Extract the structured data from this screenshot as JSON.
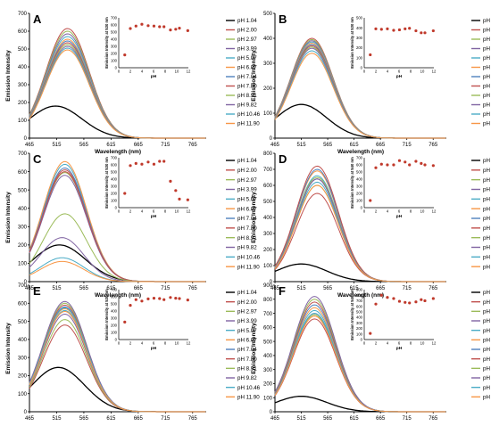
{
  "figure": {
    "legend_entries": [
      "pH 1.04",
      "pH 2.00",
      "pH 2.97",
      "pH 3.99",
      "pH 5.07",
      "pH 6.07",
      "pH 7.04",
      "pH 7.80",
      "pH 8.91",
      "pH 9.82",
      "pH 10.46",
      "pH 11.90"
    ],
    "series_colors": [
      "#000000",
      "#c0504d",
      "#9bbb59",
      "#8064a2",
      "#4bacc6",
      "#f79646",
      "#4f81bd",
      "#c0504d",
      "#9bbb59",
      "#8064a2",
      "#4bacc6",
      "#f79646"
    ],
    "inset_point_color": "#c0392b",
    "xticks": [
      465,
      515,
      565,
      615,
      665,
      715,
      765
    ]
  },
  "chart_data": [
    {
      "panel": "A",
      "type": "line",
      "xlabel": "Wavelength (nm)",
      "ylabel": "Emission Intensity",
      "xlim": [
        465,
        790
      ],
      "ylim": [
        0,
        700
      ],
      "yticks": [
        0,
        100,
        200,
        300,
        400,
        500,
        600,
        700
      ],
      "peaks": [
        180,
        615,
        600,
        585,
        570,
        555,
        545,
        535,
        525,
        515,
        505,
        495
      ],
      "peak_x": [
        513,
        535,
        535,
        535,
        535,
        535,
        535,
        535,
        535,
        535,
        535,
        535
      ],
      "inset": {
        "ylabel": "Emission Intensity at 530 nm",
        "xlabel": "pH",
        "xlim": [
          0,
          12
        ],
        "ylim": [
          0,
          700
        ],
        "yticks": [
          0,
          100,
          200,
          300,
          400,
          500,
          600,
          700
        ],
        "xticks": [
          0,
          2,
          4,
          6,
          8,
          10,
          12
        ],
        "x": [
          1.04,
          2.0,
          2.97,
          3.99,
          5.07,
          6.07,
          7.04,
          7.8,
          8.91,
          9.82,
          10.46,
          11.9
        ],
        "y": [
          180,
          550,
          585,
          610,
          590,
          585,
          575,
          575,
          530,
          540,
          555,
          520
        ]
      }
    },
    {
      "panel": "B",
      "type": "line",
      "xlabel": "Wavelength (nm)",
      "ylabel": "Emission Intensity",
      "xlim": [
        465,
        790
      ],
      "ylim": [
        0,
        500
      ],
      "yticks": [
        0,
        100,
        200,
        300,
        400,
        500
      ],
      "peaks": [
        135,
        400,
        395,
        390,
        385,
        380,
        375,
        370,
        365,
        360,
        350,
        340
      ],
      "peak_x": [
        515,
        535,
        535,
        535,
        535,
        535,
        535,
        535,
        535,
        535,
        535,
        535
      ],
      "inset": {
        "ylabel": "Emission Intensity at 530 nm",
        "xlabel": "pH",
        "xlim": [
          0,
          12
        ],
        "ylim": [
          0,
          500
        ],
        "yticks": [
          0,
          100,
          200,
          300,
          400,
          500
        ],
        "xticks": [
          0,
          2,
          4,
          6,
          8,
          10,
          12
        ],
        "x": [
          1.04,
          2.0,
          2.97,
          3.99,
          5.07,
          6.07,
          7.04,
          7.8,
          8.91,
          9.82,
          10.46,
          11.9
        ],
        "y": [
          130,
          390,
          385,
          390,
          375,
          380,
          390,
          395,
          370,
          350,
          350,
          370
        ]
      }
    },
    {
      "panel": "C",
      "type": "line",
      "xlabel": "Wavelength (nm)",
      "ylabel": "Emission Intensity",
      "xlim": [
        465,
        790
      ],
      "ylim": [
        0,
        700
      ],
      "yticks": [
        0,
        100,
        200,
        300,
        400,
        500,
        600,
        700
      ],
      "peaks": [
        200,
        610,
        595,
        580,
        640,
        655,
        620,
        600,
        370,
        240,
        130,
        110
      ],
      "peak_x": [
        520,
        530,
        530,
        530,
        530,
        530,
        530,
        530,
        530,
        525,
        525,
        525
      ],
      "inset": {
        "ylabel": "Emission Intensity at 530 nm",
        "xlabel": "pH",
        "xlim": [
          0,
          12
        ],
        "ylim": [
          0,
          700
        ],
        "yticks": [
          0,
          100,
          200,
          300,
          400,
          500,
          600,
          700
        ],
        "xticks": [
          0,
          2,
          4,
          6,
          8,
          10,
          12
        ],
        "x": [
          1.04,
          2.0,
          2.97,
          3.99,
          5.07,
          6.07,
          7.04,
          7.8,
          8.91,
          9.82,
          10.46,
          11.9
        ],
        "y": [
          200,
          590,
          620,
          610,
          640,
          610,
          650,
          650,
          370,
          240,
          120,
          110
        ]
      }
    },
    {
      "panel": "D",
      "type": "line",
      "xlabel": "Wavelength (nm)",
      "ylabel": "Emission Intensity",
      "xlim": [
        465,
        790
      ],
      "ylim": [
        0,
        800
      ],
      "yticks": [
        0,
        100,
        200,
        300,
        400,
        500,
        600,
        700,
        800
      ],
      "peaks": [
        110,
        550,
        600,
        640,
        660,
        690,
        700,
        720,
        650,
        640,
        620,
        600
      ],
      "peak_x": [
        515,
        545,
        545,
        545,
        545,
        545,
        545,
        545,
        545,
        545,
        545,
        545
      ],
      "inset": {
        "ylabel": "Emission Intensity at 540 nm",
        "xlabel": "pH",
        "xlim": [
          0,
          12
        ],
        "ylim": [
          0,
          700
        ],
        "yticks": [
          0,
          100,
          200,
          300,
          400,
          500,
          600,
          700
        ],
        "xticks": [
          0,
          2,
          4,
          6,
          8,
          10,
          12
        ],
        "x": [
          1.04,
          2.0,
          2.97,
          3.99,
          5.07,
          6.07,
          7.04,
          7.8,
          8.91,
          9.82,
          10.46,
          11.9
        ],
        "y": [
          100,
          560,
          610,
          600,
          600,
          660,
          640,
          600,
          650,
          620,
          600,
          590
        ]
      }
    },
    {
      "panel": "E",
      "type": "line",
      "xlabel": "Wavelength (nm)",
      "ylabel": "Emission Intensity",
      "xlim": [
        465,
        790
      ],
      "ylim": [
        0,
        700
      ],
      "yticks": [
        0,
        100,
        200,
        300,
        400,
        500,
        600,
        700
      ],
      "peaks": [
        245,
        480,
        510,
        540,
        560,
        570,
        580,
        590,
        600,
        610,
        575,
        555
      ],
      "peak_x": [
        518,
        530,
        530,
        530,
        530,
        530,
        530,
        530,
        530,
        530,
        530,
        530
      ],
      "inset": {
        "ylabel": "Emission Intensity at 530 nm",
        "xlabel": "pH",
        "xlim": [
          0,
          12
        ],
        "ylim": [
          0,
          700
        ],
        "yticks": [
          0,
          100,
          200,
          300,
          400,
          500,
          600,
          700
        ],
        "xticks": [
          0,
          2,
          4,
          6,
          8,
          10,
          12
        ],
        "x": [
          1.04,
          2.0,
          2.97,
          3.99,
          5.07,
          6.07,
          7.04,
          7.8,
          8.91,
          9.82,
          10.46,
          11.9
        ],
        "y": [
          245,
          480,
          560,
          540,
          570,
          580,
          575,
          560,
          590,
          580,
          575,
          555
        ]
      }
    },
    {
      "panel": "F",
      "type": "line",
      "xlabel": "Wavelength (nm)",
      "ylabel": "Emission Intensity",
      "xlim": [
        465,
        790
      ],
      "ylim": [
        0,
        900
      ],
      "yticks": [
        0,
        100,
        200,
        300,
        400,
        500,
        600,
        700,
        800,
        900
      ],
      "peaks": [
        110,
        660,
        690,
        700,
        720,
        740,
        760,
        780,
        800,
        820,
        700,
        680
      ],
      "peak_x": [
        515,
        540,
        540,
        540,
        540,
        540,
        540,
        540,
        540,
        540,
        540,
        540
      ],
      "inset": {
        "ylabel": "Emission Intensity at 540 nm",
        "xlabel": "pH",
        "xlim": [
          0,
          12
        ],
        "ylim": [
          0,
          900
        ],
        "yticks": [
          0,
          100,
          200,
          300,
          400,
          500,
          600,
          700,
          800,
          900
        ],
        "xticks": [
          0,
          2,
          4,
          6,
          8,
          10,
          12
        ],
        "x": [
          1.04,
          2.0,
          2.97,
          3.99,
          5.07,
          6.07,
          7.04,
          7.8,
          8.91,
          9.82,
          10.46,
          11.9
        ],
        "y": [
          110,
          640,
          800,
          760,
          740,
          690,
          670,
          660,
          680,
          720,
          700,
          740
        ]
      }
    }
  ]
}
